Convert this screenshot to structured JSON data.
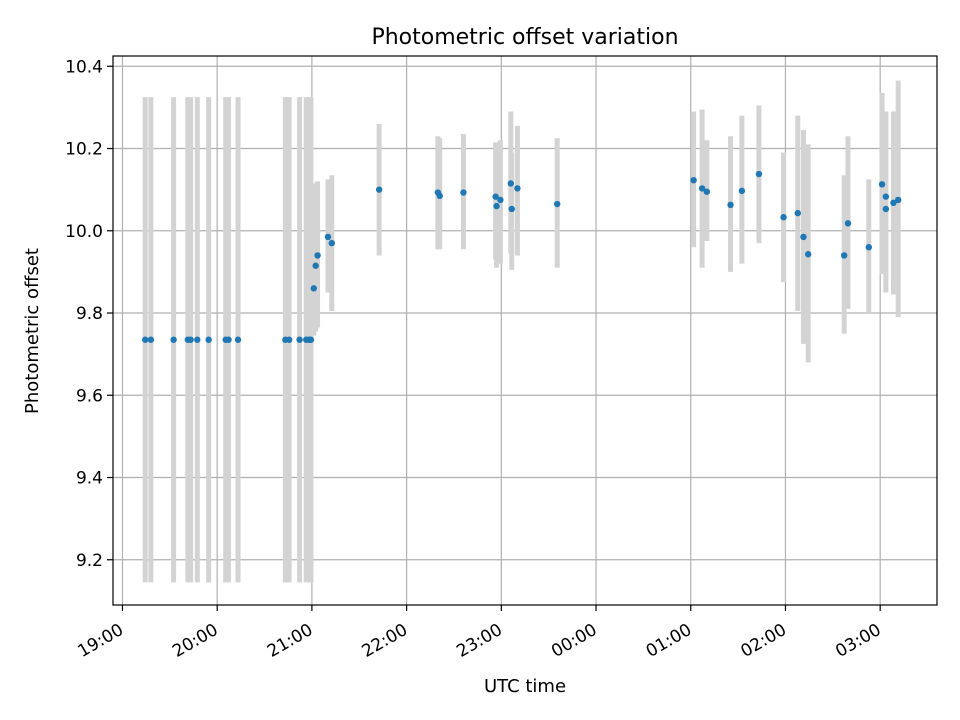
{
  "chart_data": {
    "type": "scatter",
    "title": "Photometric offset variation",
    "xlabel": "UTC time",
    "ylabel": "Photometric offset",
    "x_unit": "hours since 19:00 UTC",
    "xlim": [
      -0.1,
      8.6
    ],
    "ylim": [
      9.09,
      10.425
    ],
    "grid": true,
    "x_tick_values": [
      0,
      1,
      2,
      3,
      4,
      5,
      6,
      7,
      8
    ],
    "x_tick_labels": [
      "19:00",
      "20:00",
      "21:00",
      "22:00",
      "23:00",
      "00:00",
      "01:00",
      "02:00",
      "03:00"
    ],
    "y_tick_values": [
      9.2,
      9.4,
      9.6,
      9.8,
      10.0,
      10.2,
      10.4
    ],
    "y_tick_labels": [
      "9.2",
      "9.4",
      "9.6",
      "9.8",
      "10.0",
      "10.2",
      "10.4"
    ],
    "colors": {
      "points": "#1f77b4",
      "error_bars": "#d3d3d3",
      "grid": "#b0b0b0"
    },
    "series": [
      {
        "marker": "point",
        "error_bars": true,
        "x": [
          0.24,
          0.3,
          0.54,
          0.69,
          0.72,
          0.79,
          0.91,
          1.09,
          1.12,
          1.22,
          1.72,
          1.76,
          1.87,
          1.94,
          1.97,
          1.99,
          2.02,
          2.04,
          2.06,
          2.17,
          2.21,
          2.71,
          3.33,
          3.35,
          3.6,
          3.94,
          3.95,
          3.99,
          4.1,
          4.11,
          4.17,
          4.59,
          6.03,
          6.12,
          6.17,
          6.42,
          6.54,
          6.72,
          6.98,
          7.13,
          7.19,
          7.24,
          7.62,
          7.66,
          7.88,
          8.02,
          8.06,
          8.06,
          8.14,
          8.19
        ],
        "y": [
          9.735,
          9.735,
          9.735,
          9.735,
          9.735,
          9.735,
          9.735,
          9.735,
          9.735,
          9.735,
          9.735,
          9.735,
          9.735,
          9.735,
          9.735,
          9.735,
          9.86,
          9.915,
          9.94,
          9.985,
          9.97,
          10.1,
          10.093,
          10.085,
          10.093,
          10.083,
          10.06,
          10.075,
          10.115,
          10.053,
          10.103,
          10.065,
          10.123,
          10.103,
          10.095,
          10.063,
          10.097,
          10.138,
          10.033,
          10.043,
          9.985,
          9.943,
          9.94,
          10.018,
          9.96,
          10.113,
          10.053,
          10.083,
          10.068,
          10.075
        ],
        "err_low": [
          9.145,
          9.145,
          9.145,
          9.145,
          9.145,
          9.145,
          9.145,
          9.145,
          9.145,
          9.145,
          9.145,
          9.145,
          9.145,
          9.145,
          9.145,
          9.145,
          9.745,
          9.755,
          9.765,
          9.85,
          9.805,
          9.94,
          9.955,
          9.955,
          9.955,
          9.93,
          9.91,
          9.92,
          9.945,
          9.905,
          9.94,
          9.91,
          9.96,
          9.91,
          9.975,
          9.9,
          9.92,
          9.97,
          9.875,
          9.805,
          9.725,
          9.68,
          9.75,
          9.81,
          9.8,
          9.895,
          9.85,
          9.875,
          9.845,
          9.79
        ],
        "err_high": [
          10.325,
          10.325,
          10.325,
          10.325,
          10.325,
          10.325,
          10.325,
          10.325,
          10.325,
          10.325,
          10.325,
          10.325,
          10.325,
          10.325,
          10.325,
          10.325,
          10.08,
          10.115,
          10.12,
          10.125,
          10.135,
          10.26,
          10.23,
          10.225,
          10.235,
          10.215,
          10.215,
          10.22,
          10.29,
          10.19,
          10.255,
          10.225,
          10.29,
          10.295,
          10.22,
          10.23,
          10.28,
          10.305,
          10.19,
          10.28,
          10.245,
          10.21,
          10.135,
          10.23,
          10.125,
          10.335,
          10.29,
          10.29,
          10.29,
          10.365
        ]
      }
    ]
  }
}
